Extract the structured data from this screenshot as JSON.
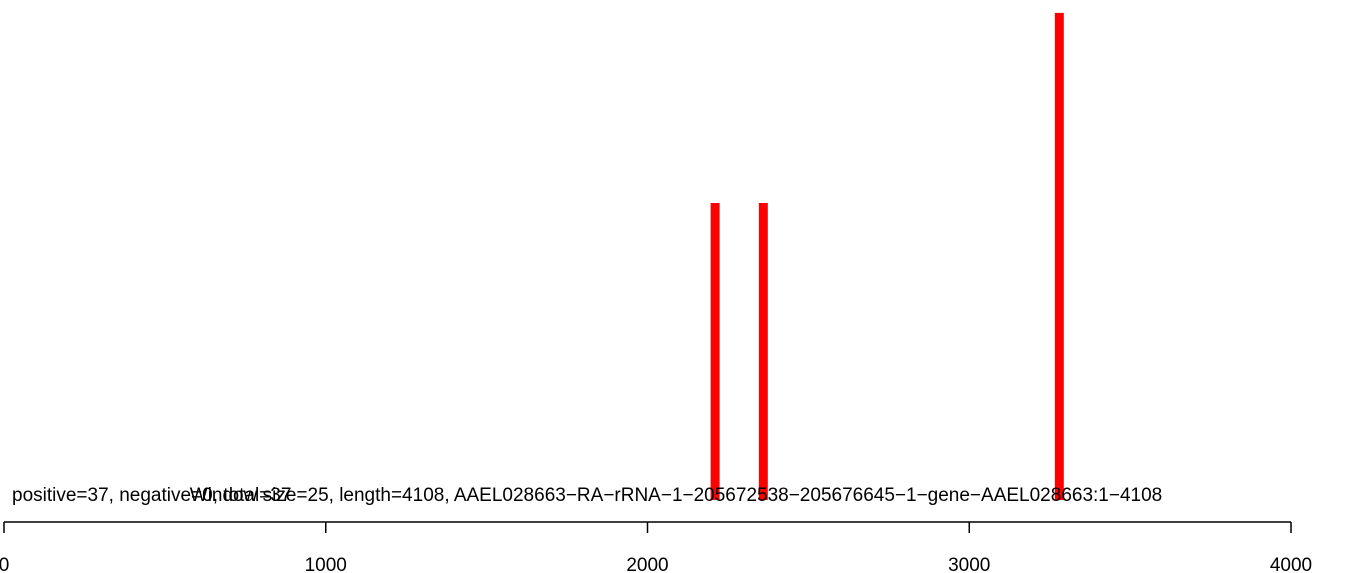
{
  "chart_data": {
    "type": "bar",
    "labels": {
      "left": "positive=37, negative=0, total=37",
      "center": "Window size=25, length=4108, AAEL028663−RA−rRNA−1−205672538−205676645−1−gene−AAEL028663:1−4108"
    },
    "bars": [
      {
        "x": 2210,
        "y": 1
      },
      {
        "x": 2360,
        "y": 1
      },
      {
        "x": 3280,
        "y": 1.64
      }
    ],
    "xlim": [
      0,
      4000
    ],
    "ylim": [
      0,
      1.6
    ],
    "x_ticks": [
      0,
      1000,
      2000,
      3000,
      4000
    ],
    "x_tick_labels": [
      "0",
      "1000",
      "2000",
      "3000",
      "4000"
    ],
    "bar_color": "#ff0000",
    "grid": false,
    "legend": "none"
  }
}
